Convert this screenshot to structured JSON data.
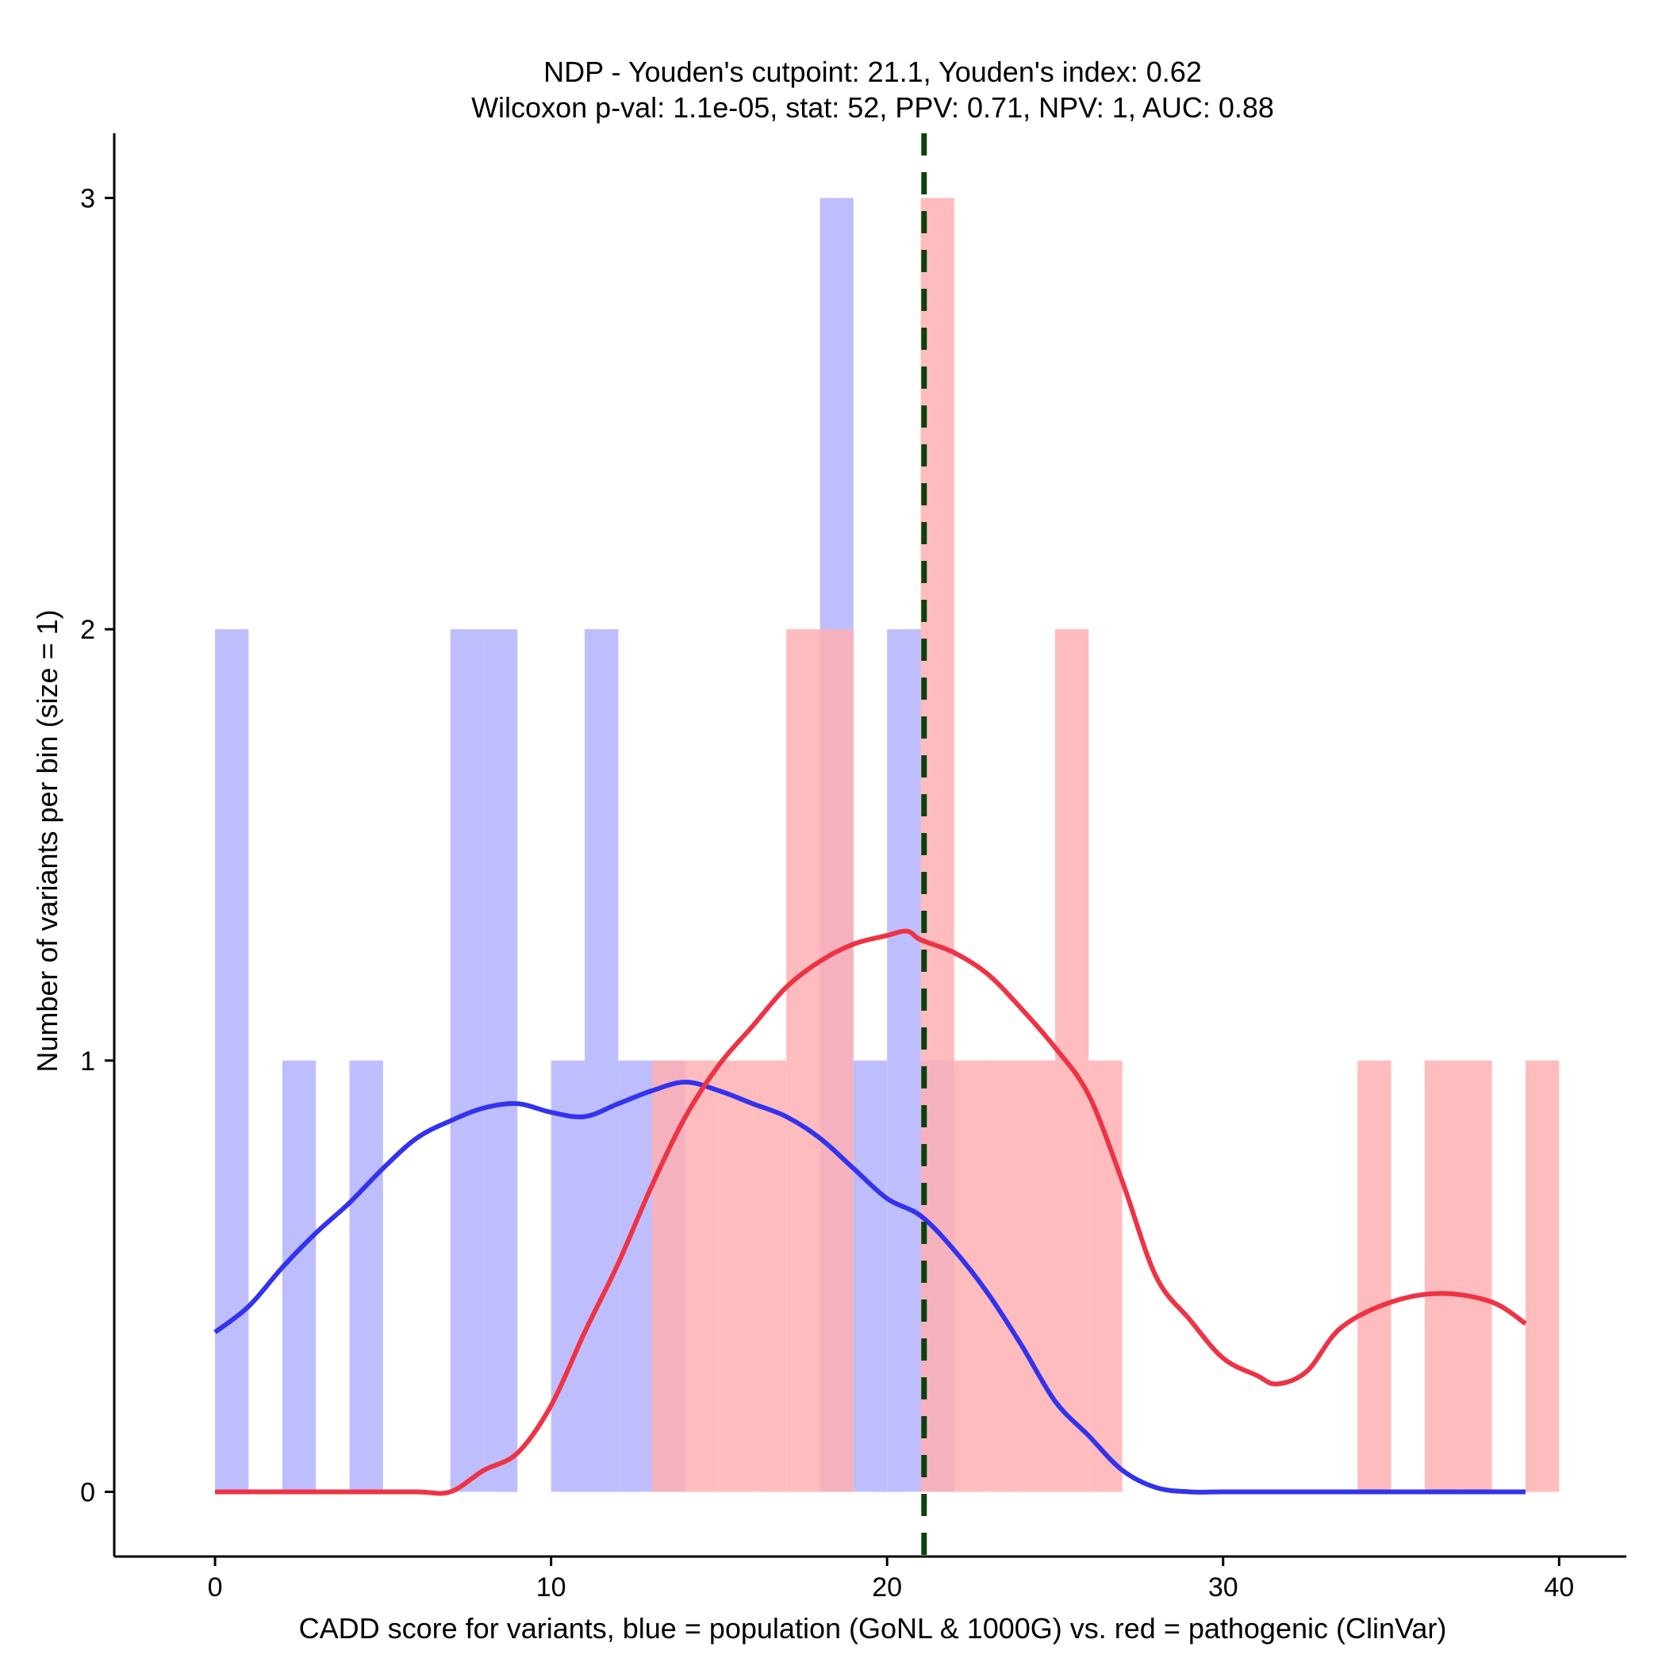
{
  "chart_data": {
    "type": "bar",
    "title": "NDP - Youden's cutpoint: 21.1, Youden's index: 0.62",
    "subtitle": "Wilcoxon p-val: 1.1e-05, stat: 52, PPV: 0.71, NPV: 1, AUC: 0.88",
    "xlabel": "CADD score for variants, blue = population (GoNL & 1000G) vs. red = pathogenic (ClinVar)",
    "ylabel": "Number of variants per bin (size = 1)",
    "xlim": [
      -3,
      42
    ],
    "ylim": [
      -0.15,
      3.15
    ],
    "xticks": [
      0,
      10,
      20,
      30,
      40
    ],
    "yticks": [
      0,
      1,
      2,
      3
    ],
    "cutpoint": 21.1,
    "colors": {
      "population_bar": "#b3b3ff",
      "pathogenic_bar": "#ffb0b3",
      "population_line": "#3333ee",
      "pathogenic_line": "#ee3344",
      "cutpoint_line": "#0c420c"
    },
    "series": [
      {
        "name": "population (GoNL & 1000G)",
        "bins": [
          {
            "start": 0,
            "count": 2
          },
          {
            "start": 2,
            "count": 1
          },
          {
            "start": 4,
            "count": 1
          },
          {
            "start": 7,
            "count": 2
          },
          {
            "start": 8,
            "count": 2
          },
          {
            "start": 10,
            "count": 1
          },
          {
            "start": 11,
            "count": 2
          },
          {
            "start": 12,
            "count": 1
          },
          {
            "start": 13,
            "count": 1
          },
          {
            "start": 18,
            "count": 3
          },
          {
            "start": 19,
            "count": 1
          },
          {
            "start": 20,
            "count": 2
          },
          {
            "start": 21,
            "count": 1
          }
        ],
        "density_x": [
          0,
          1,
          2,
          3,
          4,
          5,
          6,
          7,
          8,
          9,
          10,
          11,
          12,
          13,
          14,
          15,
          16,
          17,
          18,
          19,
          20,
          21,
          22,
          23,
          24,
          25,
          26,
          27,
          28,
          29,
          30,
          32,
          35,
          39
        ],
        "density_y": [
          0.37,
          0.43,
          0.52,
          0.6,
          0.67,
          0.75,
          0.82,
          0.86,
          0.89,
          0.9,
          0.88,
          0.87,
          0.9,
          0.93,
          0.95,
          0.93,
          0.9,
          0.87,
          0.82,
          0.75,
          0.68,
          0.64,
          0.56,
          0.46,
          0.34,
          0.21,
          0.13,
          0.05,
          0.01,
          0.0,
          0.0,
          0.0,
          0.0,
          0.0
        ]
      },
      {
        "name": "pathogenic (ClinVar)",
        "bins": [
          {
            "start": 13,
            "count": 1
          },
          {
            "start": 14,
            "count": 1
          },
          {
            "start": 15,
            "count": 1
          },
          {
            "start": 16,
            "count": 1
          },
          {
            "start": 17,
            "count": 2
          },
          {
            "start": 18,
            "count": 2
          },
          {
            "start": 21,
            "count": 3
          },
          {
            "start": 22,
            "count": 1
          },
          {
            "start": 23,
            "count": 1
          },
          {
            "start": 24,
            "count": 1
          },
          {
            "start": 25,
            "count": 2
          },
          {
            "start": 26,
            "count": 1
          },
          {
            "start": 34,
            "count": 1
          },
          {
            "start": 36,
            "count": 1
          },
          {
            "start": 37,
            "count": 1
          },
          {
            "start": 39,
            "count": 1
          }
        ],
        "density_x": [
          0,
          2,
          4,
          6,
          7,
          8,
          9,
          10,
          11,
          12,
          13,
          14,
          15,
          16,
          17,
          18,
          19,
          20,
          20.6,
          21,
          22,
          23,
          24,
          25,
          26,
          27,
          28,
          29,
          30,
          31,
          31.6,
          32.5,
          33.5,
          35,
          36.5,
          38,
          39
        ],
        "density_y": [
          0.0,
          0.0,
          0.0,
          0.0,
          0.0,
          0.05,
          0.09,
          0.2,
          0.37,
          0.53,
          0.71,
          0.87,
          0.99,
          1.08,
          1.17,
          1.23,
          1.27,
          1.29,
          1.3,
          1.28,
          1.25,
          1.2,
          1.12,
          1.03,
          0.92,
          0.72,
          0.5,
          0.4,
          0.31,
          0.27,
          0.25,
          0.28,
          0.38,
          0.44,
          0.46,
          0.44,
          0.39
        ]
      }
    ]
  }
}
